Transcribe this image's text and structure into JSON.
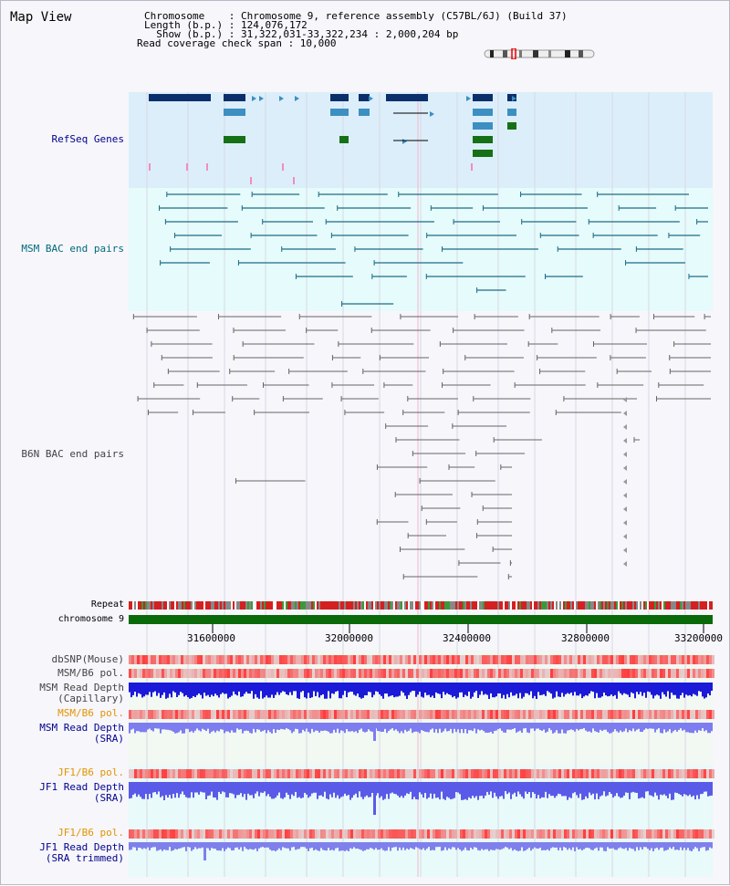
{
  "title": "Map View",
  "header": {
    "chromosome_label": "Chromosome    : Chromosome 9, reference assembly (C57BL/6J) (Build 37)",
    "length_label": "Length (b.p.) : 124,076,172",
    "show_label": "  Show (b.p.) : 31,322,031-33,322,234 : 2,000,204 bp",
    "span_label": "Read coverage check span : 10,000"
  },
  "tracks": {
    "refseq": "RefSeq Genes",
    "msm_bac": "MSM BAC end pairs",
    "b6n_bac": "B6N BAC end pairs",
    "repeat": "Repeat",
    "chrom": "chromosome 9",
    "dbsnp": "dbSNP(Mouse)",
    "msm_pol": "MSM/B6 pol.",
    "msm_depth_cap": "MSM Read Depth\n(Capillary)",
    "msm_pol2": "MSM/B6 pol.",
    "msm_depth_sra": "MSM Read Depth\n(SRA)",
    "jf1_pol": "JF1/B6 pol.",
    "jf1_depth": "JF1 Read Depth\n(SRA)",
    "jf1_pol2": "JF1/B6 pol.",
    "jf1_depth_trim": "JF1 Read Depth\n(SRA trimmed)"
  },
  "axis": {
    "ticks": [
      "31600000",
      "32000000",
      "32400000",
      "32800000",
      "33200000"
    ]
  },
  "colors": {
    "refseq_bg": "#dceefa",
    "msm_bg": "#e4fafa",
    "b6n_bg": "#f6f6fb",
    "label_blue": "#00008b",
    "label_teal": "#006a7a",
    "label_orange": "#e39400",
    "label_gray": "#444444"
  }
}
